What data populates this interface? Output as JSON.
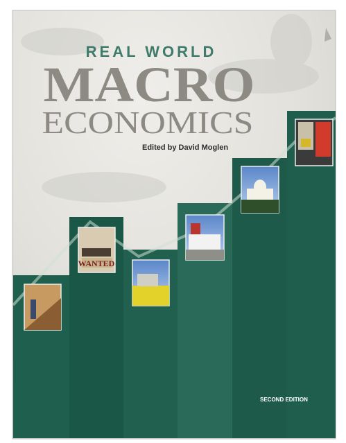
{
  "cover": {
    "series_title": "REAL WORLD",
    "title_top": "MACRO",
    "title_bottom": "ECONOMICS",
    "editor": "Edited by David Moglen",
    "edition": "SECOND EDITION"
  }
}
